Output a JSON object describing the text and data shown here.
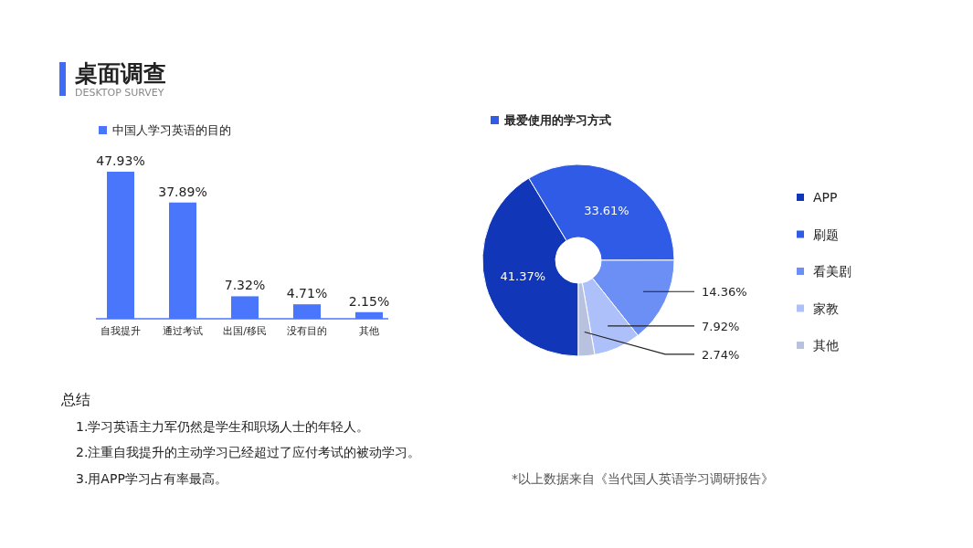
{
  "chart_data": [
    {
      "type": "other",
      "title": "桌面调查",
      "subtitle": "DESKTOP SURVEY",
      "annotations": [
        "总结",
        "1.学习英语主力军仍然是学生和职场人士的年轻人。",
        "2.注重自我提升的主动学习已经超过了应付考试的被动学习。",
        "3.用APP学习占有率最高。"
      ]
    },
    {
      "type": "bar",
      "title": "中国人学习英语的目的",
      "categories": [
        "自我提升",
        "通过考试",
        "出国/移民",
        "没有目的",
        "其他"
      ],
      "values": [
        47.93,
        37.89,
        7.32,
        4.71,
        2.15
      ],
      "value_labels": [
        "47.93%",
        "37.89%",
        "7.32%",
        "4.71%",
        "2.15%"
      ],
      "color": "#4a76fb"
    },
    {
      "type": "donut",
      "title": "最爱使用的学习方式",
      "categories": [
        "APP",
        "刷题",
        "看美剧",
        "家教",
        "其他"
      ],
      "values": [
        41.37,
        33.61,
        14.36,
        7.92,
        2.74
      ],
      "value_labels": [
        "41.37%",
        "33.61%",
        "14.36%",
        "7.92%",
        "2.74%"
      ],
      "colors": [
        "#1236b8",
        "#2f5be6",
        "#6b8ff5",
        "#adc0f9",
        "#b8c2df"
      ],
      "legend": "right",
      "annotations": [
        "*以上数据来自《当代国人英语学习调研报告》"
      ]
    }
  ]
}
